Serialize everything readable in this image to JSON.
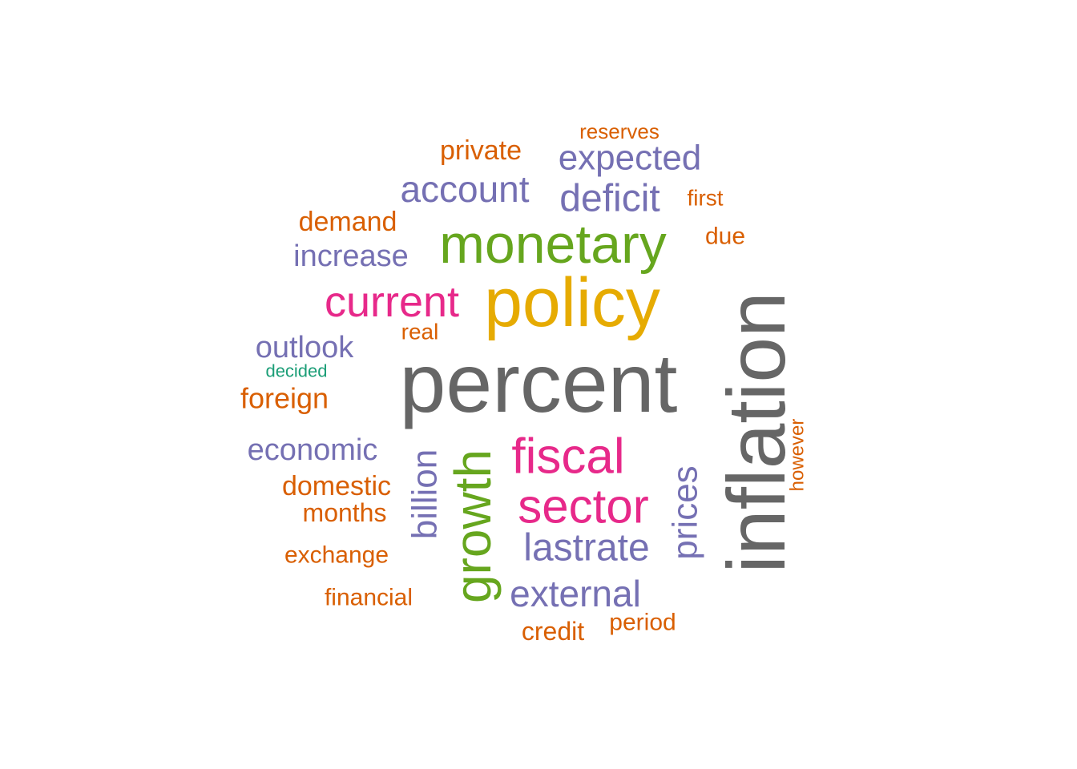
{
  "palette": {
    "gray": "#666666",
    "orange": "#D95F02",
    "purple": "#7570B3",
    "green": "#66A61E",
    "pink": "#E7298A",
    "gold": "#E6AB02",
    "teal": "#1B9E77"
  },
  "words": [
    {
      "text": "percent",
      "color": "gray",
      "rotated": false
    },
    {
      "text": "inflation",
      "color": "gray",
      "rotated": true
    },
    {
      "text": "policy",
      "color": "gold",
      "rotated": false
    },
    {
      "text": "monetary",
      "color": "green",
      "rotated": false
    },
    {
      "text": "growth",
      "color": "green",
      "rotated": true
    },
    {
      "text": "fiscal",
      "color": "pink",
      "rotated": false
    },
    {
      "text": "sector",
      "color": "pink",
      "rotated": false
    },
    {
      "text": "current",
      "color": "pink",
      "rotated": false
    },
    {
      "text": "account",
      "color": "purple",
      "rotated": false
    },
    {
      "text": "deficit",
      "color": "purple",
      "rotated": false
    },
    {
      "text": "expected",
      "color": "purple",
      "rotated": false
    },
    {
      "text": "increase",
      "color": "purple",
      "rotated": false
    },
    {
      "text": "outlook",
      "color": "purple",
      "rotated": false
    },
    {
      "text": "economic",
      "color": "purple",
      "rotated": false
    },
    {
      "text": "billion",
      "color": "purple",
      "rotated": true
    },
    {
      "text": "lastrate",
      "color": "purple",
      "rotated": false
    },
    {
      "text": "prices",
      "color": "purple",
      "rotated": true
    },
    {
      "text": "external",
      "color": "purple",
      "rotated": false
    },
    {
      "text": "private",
      "color": "orange",
      "rotated": false
    },
    {
      "text": "reserves",
      "color": "orange",
      "rotated": false
    },
    {
      "text": "first",
      "color": "orange",
      "rotated": false
    },
    {
      "text": "demand",
      "color": "orange",
      "rotated": false
    },
    {
      "text": "due",
      "color": "orange",
      "rotated": false
    },
    {
      "text": "real",
      "color": "orange",
      "rotated": false
    },
    {
      "text": "foreign",
      "color": "orange",
      "rotated": false
    },
    {
      "text": "domestic",
      "color": "orange",
      "rotated": false
    },
    {
      "text": "months",
      "color": "orange",
      "rotated": false
    },
    {
      "text": "exchange",
      "color": "orange",
      "rotated": false
    },
    {
      "text": "financial",
      "color": "orange",
      "rotated": false
    },
    {
      "text": "credit",
      "color": "orange",
      "rotated": false
    },
    {
      "text": "period",
      "color": "orange",
      "rotated": false
    },
    {
      "text": "however",
      "color": "orange",
      "rotated": true
    },
    {
      "text": "decided",
      "color": "teal",
      "rotated": false
    }
  ]
}
